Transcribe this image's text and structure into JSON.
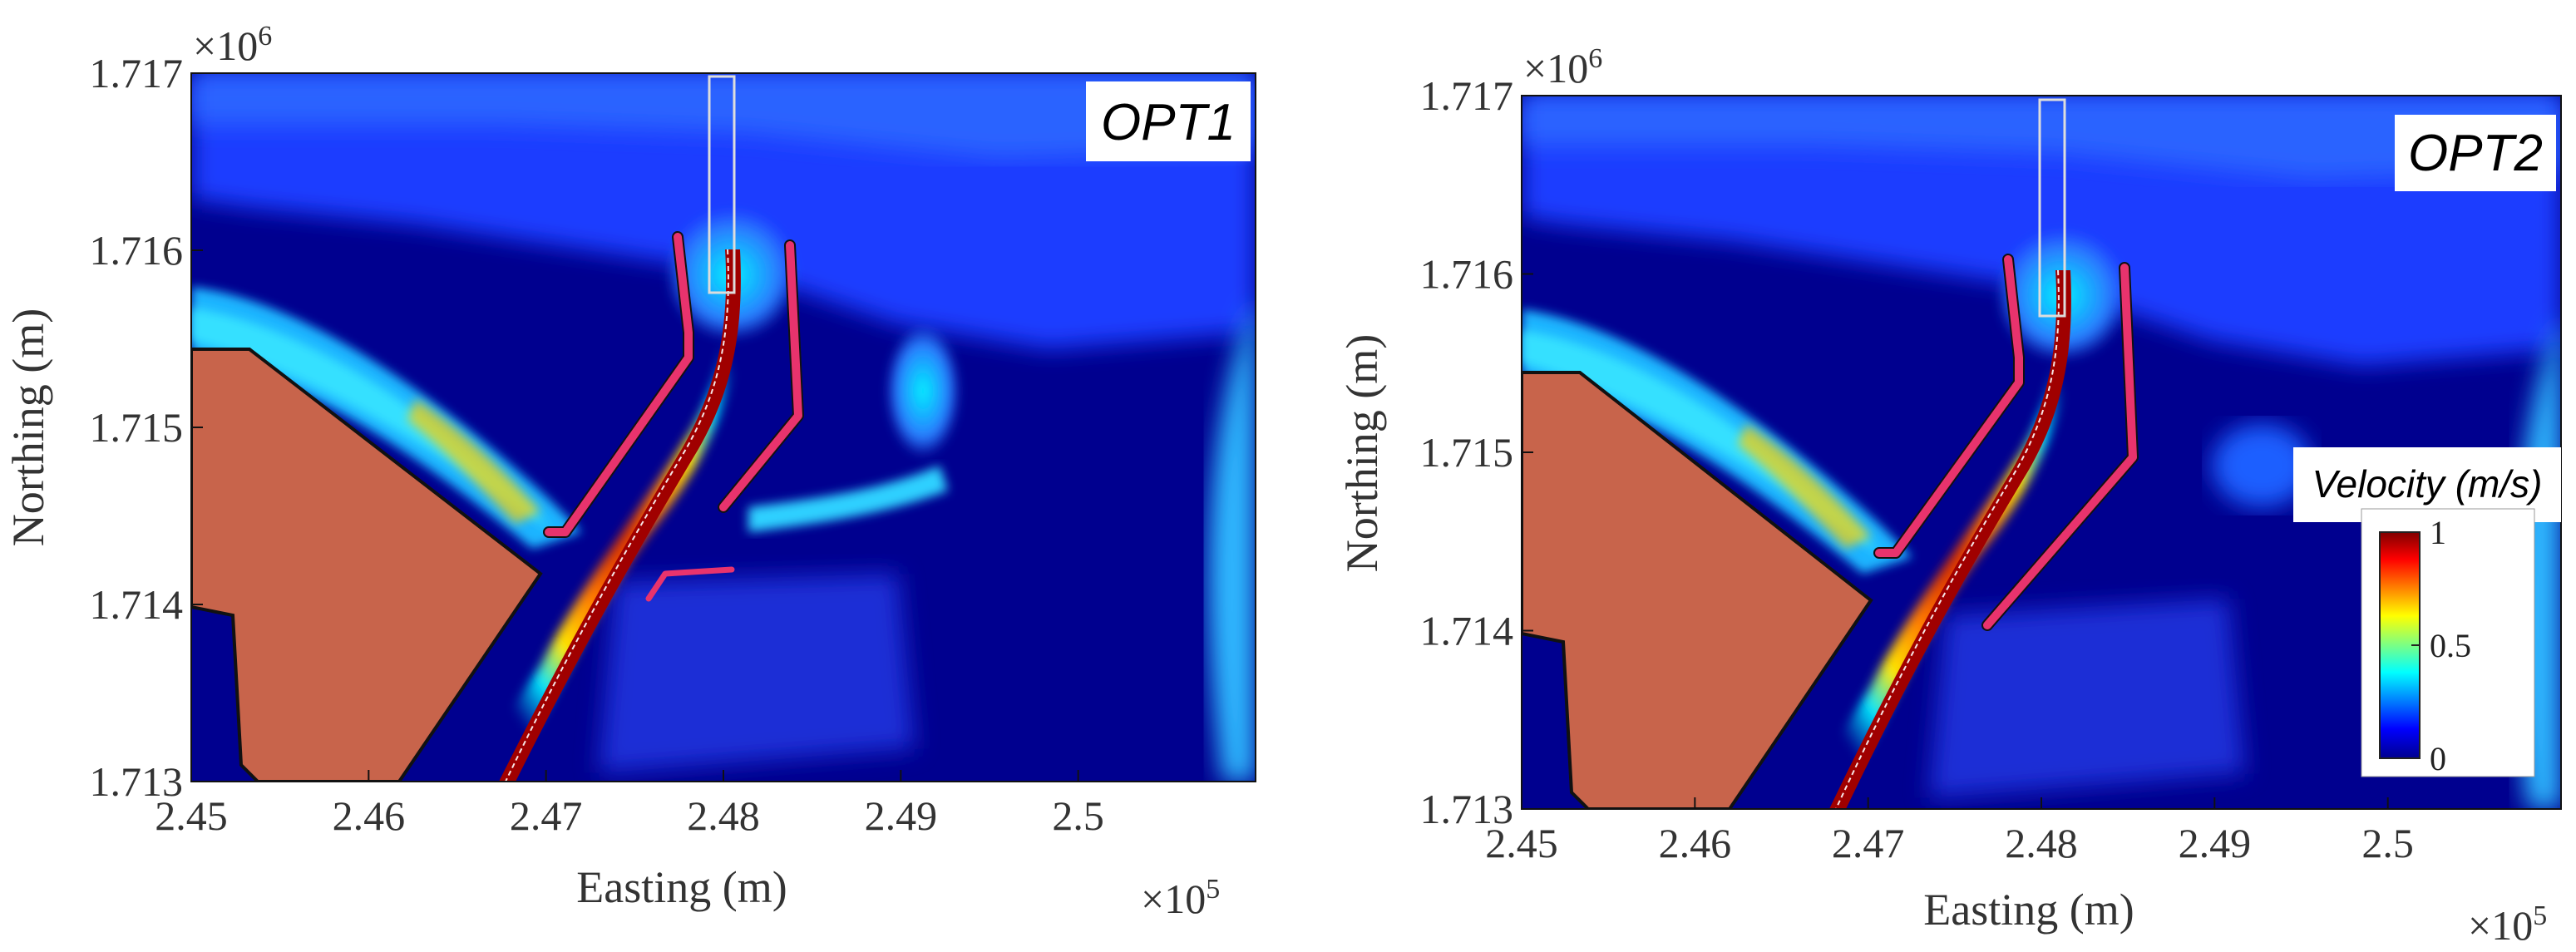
{
  "chart_data": [
    {
      "type": "heatmap",
      "label": "OPT1",
      "xlabel": "Easting (m)",
      "ylabel": "Northing (m)",
      "x_multiplier": "×10",
      "x_multiplier_exp": "5",
      "y_multiplier": "×10",
      "y_multiplier_exp": "6",
      "xlim": [
        2.45,
        2.51
      ],
      "ylim": [
        1.713,
        1.717
      ],
      "xticks": [
        "2.45",
        "2.46",
        "2.47",
        "2.48",
        "2.49",
        "2.5"
      ],
      "yticks": [
        "1.713",
        "1.714",
        "1.715",
        "1.716",
        "1.717"
      ],
      "colorbar": null
    },
    {
      "type": "heatmap",
      "label": "OPT2",
      "xlabel": "Easting (m)",
      "ylabel": "Northing (m)",
      "x_multiplier": "×10",
      "x_multiplier_exp": "5",
      "y_multiplier": "×10",
      "y_multiplier_exp": "6",
      "xlim": [
        2.45,
        2.51
      ],
      "ylim": [
        1.713,
        1.717
      ],
      "xticks": [
        "2.45",
        "2.46",
        "2.47",
        "2.48",
        "2.49",
        "2.5"
      ],
      "yticks": [
        "1.713",
        "1.714",
        "1.715",
        "1.716",
        "1.717"
      ],
      "colorbar": {
        "title": "Velocity (m/s)",
        "ticks": [
          "1",
          "0.5",
          "0"
        ],
        "range": [
          0,
          1
        ]
      }
    }
  ],
  "colors": {
    "water_deep": "#00008f",
    "water_mid": "#1e4fff",
    "land": "#c8644b",
    "structure": "#e8336d",
    "outline": "#111111"
  }
}
